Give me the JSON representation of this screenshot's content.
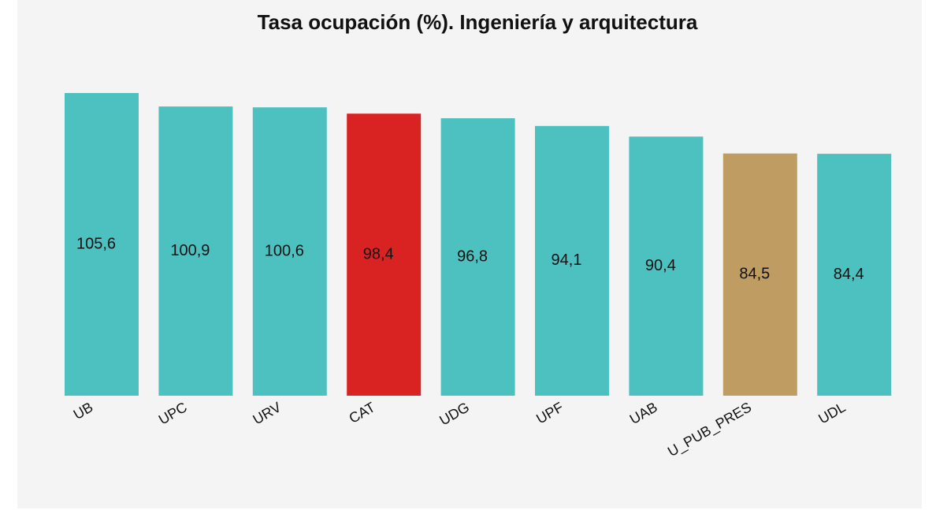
{
  "chart_data": {
    "type": "bar",
    "title": "Tasa ocupación (%). Ingeniería y arquitectura",
    "categories": [
      "UB",
      "UPC",
      "URV",
      "CAT",
      "UDG",
      "UPF",
      "UAB",
      "U_PUB_PRES",
      "UDL"
    ],
    "values": [
      105.6,
      100.9,
      100.6,
      98.4,
      96.8,
      94.1,
      90.4,
      84.5,
      84.4
    ],
    "value_labels": [
      "105,6",
      "100,9",
      "100,6",
      "98,4",
      "96,8",
      "94,1",
      "90,4",
      "84,5",
      "84,4"
    ],
    "colors": [
      "#4dc1bf",
      "#4dc1bf",
      "#4dc1bf",
      "#d92323",
      "#4dc1bf",
      "#4dc1bf",
      "#4dc1bf",
      "#bf9c62",
      "#4dc1bf"
    ]
  }
}
